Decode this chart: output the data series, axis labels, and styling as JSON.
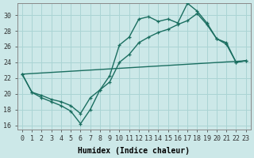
{
  "bg_color": "#cce8e8",
  "grid_color": "#aad4d4",
  "line_color": "#1a6e60",
  "xlabel": "Humidex (Indice chaleur)",
  "xlim": [
    -0.5,
    23.5
  ],
  "ylim": [
    15.5,
    31.5
  ],
  "xticks": [
    0,
    1,
    2,
    3,
    4,
    5,
    6,
    7,
    8,
    9,
    10,
    11,
    12,
    13,
    14,
    15,
    16,
    17,
    18,
    19,
    20,
    21,
    22,
    23
  ],
  "yticks": [
    16,
    18,
    20,
    22,
    24,
    26,
    28,
    30
  ],
  "curve1_x": [
    0,
    1,
    2,
    3,
    4,
    5,
    6,
    7,
    8,
    9,
    10,
    11,
    12,
    13,
    14,
    15,
    16,
    17,
    18,
    19,
    20,
    21,
    22,
    23
  ],
  "curve1_y": [
    22.5,
    20.2,
    19.5,
    19.0,
    18.5,
    17.8,
    16.2,
    18.0,
    20.5,
    22.3,
    26.2,
    27.2,
    29.5,
    29.8,
    29.2,
    29.5,
    29.0,
    31.5,
    30.5,
    29.0,
    27.0,
    26.5,
    24.0,
    24.2
  ],
  "curve2_x": [
    0,
    1,
    2,
    3,
    4,
    5,
    6,
    7,
    8,
    9,
    10,
    11,
    12,
    13,
    14,
    15,
    16,
    17,
    18,
    19,
    20,
    21,
    22,
    23
  ],
  "curve2_y": [
    22.5,
    20.2,
    19.8,
    19.3,
    19.0,
    18.5,
    17.5,
    19.5,
    20.5,
    21.5,
    24.0,
    25.0,
    26.5,
    27.2,
    27.8,
    28.2,
    28.8,
    29.3,
    30.2,
    28.8,
    27.0,
    26.3,
    24.0,
    24.2
  ],
  "line3_x": [
    0,
    23
  ],
  "line3_y": [
    22.5,
    24.2
  ],
  "lw": 1.0,
  "ms": 3,
  "font_tick": 6,
  "font_label": 7
}
